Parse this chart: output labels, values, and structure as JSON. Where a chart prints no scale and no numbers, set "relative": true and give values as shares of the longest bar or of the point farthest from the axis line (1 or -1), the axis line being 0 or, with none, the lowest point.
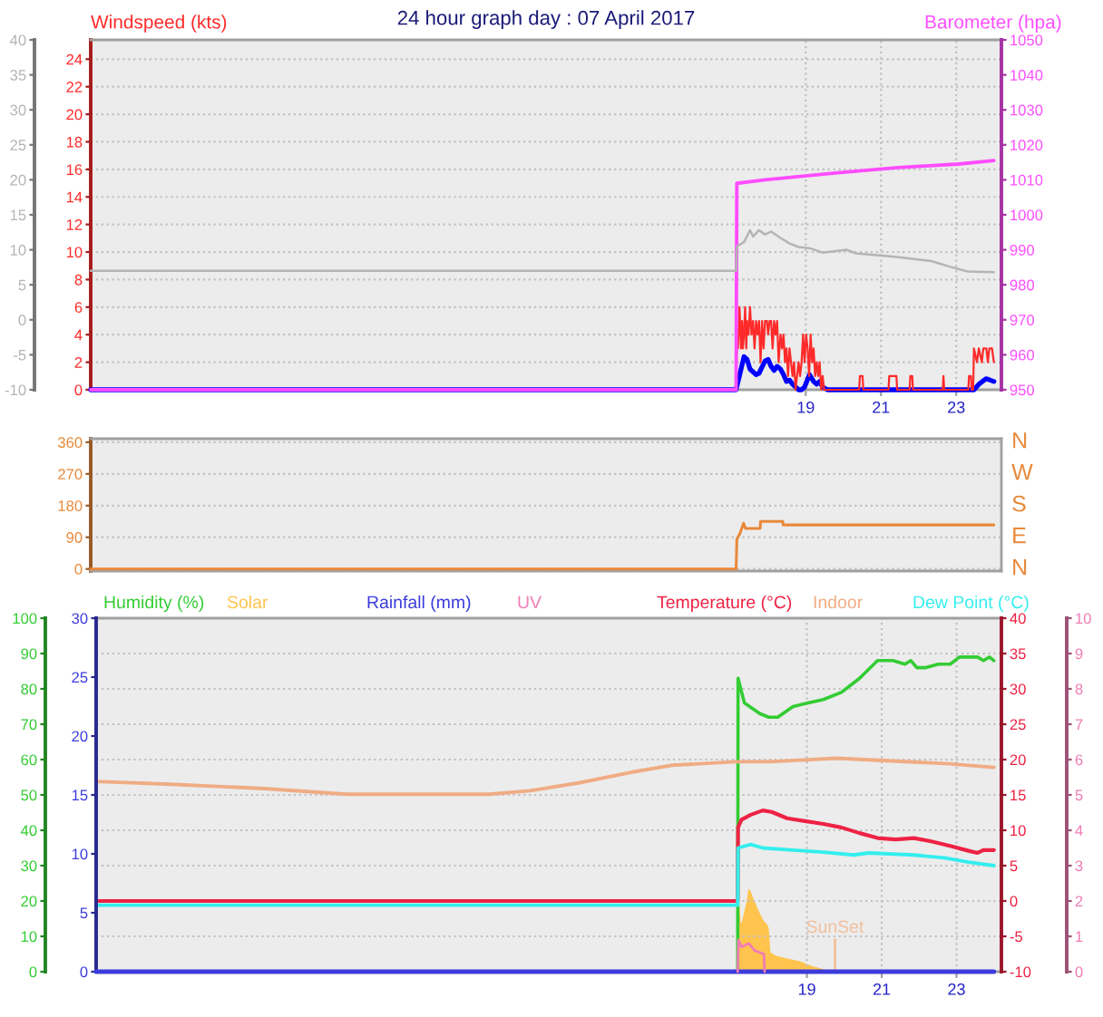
{
  "chart_data": [
    {
      "type": "line",
      "title": "24 hour graph day : 07 April 2017",
      "ylabel": "Windspeed (kts)",
      "y2label": "Barometer (hpa)",
      "xlim": [
        0,
        24.2
      ],
      "xticks": [
        19,
        21,
        23
      ],
      "ylim": [
        0,
        25.4
      ],
      "yticks": [
        0,
        2,
        4,
        6,
        8,
        10,
        12,
        14,
        16,
        18,
        20,
        22,
        24
      ],
      "y2lim": [
        950,
        1050
      ],
      "y2ticks": [
        950,
        960,
        970,
        980,
        990,
        1000,
        1010,
        1020,
        1030,
        1040,
        1050
      ],
      "y3lim": [
        -10,
        40
      ],
      "y3ticks": [
        -10,
        -5,
        0,
        5,
        10,
        15,
        20,
        25,
        30,
        35,
        40
      ],
      "grid": true,
      "series": [
        {
          "color": "#b4b4b4",
          "axis": "y3",
          "x": [
            0,
            17.15,
            17.17,
            17.2,
            17.36,
            17.52,
            17.6,
            17.76,
            17.92,
            18.08,
            18.33,
            18.57,
            18.81,
            19.13,
            19.45,
            20.09,
            20.33,
            20.73,
            21.37,
            22.34,
            22.82,
            23.3,
            24.0
          ],
          "values": [
            7,
            7,
            10.5,
            10.6,
            11.1,
            12.8,
            11.9,
            12.8,
            12.2,
            12.6,
            11.7,
            10.9,
            10.4,
            10.2,
            9.6,
            10.0,
            9.5,
            9.3,
            9.0,
            8.4,
            7.6,
            6.9,
            6.8
          ]
        },
        {
          "color": "#ff4dff",
          "axis": "y2",
          "x": [
            0,
            17.15,
            17.17,
            17.92,
            19.85,
            21.45,
            23.06,
            24.0
          ],
          "values": [
            950,
            950,
            1009,
            1010,
            1012,
            1013.5,
            1014.5,
            1015.5
          ]
        },
        {
          "color": "#ff2a2a",
          "x": [
            0,
            17.15,
            17.17,
            17.2,
            17.24,
            17.28,
            17.31,
            17.33,
            17.36,
            17.39,
            17.42,
            17.44,
            17.48,
            17.52,
            17.56,
            17.6,
            17.64,
            17.68,
            17.72,
            17.76,
            17.8,
            17.84,
            17.88,
            17.92,
            17.97,
            18.0,
            18.04,
            18.08,
            18.12,
            18.16,
            18.2,
            18.24,
            18.28,
            18.33,
            18.37,
            18.41,
            18.45,
            18.49,
            18.53,
            18.57,
            18.61,
            18.65,
            18.69,
            18.73,
            18.77,
            18.81,
            18.85,
            18.89,
            18.93,
            18.97,
            19.01,
            19.05,
            19.09,
            19.13,
            19.17,
            19.21,
            19.25,
            19.29,
            19.33,
            19.37,
            19.41,
            19.45,
            19.49,
            20.42,
            20.44,
            20.51,
            20.53,
            21.2,
            21.22,
            21.41,
            21.43,
            21.76,
            21.78,
            21.83,
            21.85,
            22.64,
            22.66,
            22.68,
            23.32,
            23.34,
            23.39,
            23.41,
            23.45,
            23.47,
            23.55,
            23.6,
            23.68,
            23.72,
            23.8,
            23.84,
            23.88,
            23.95,
            24.0
          ],
          "values": [
            0,
            0,
            4,
            3,
            6,
            3,
            5,
            3,
            4,
            6,
            3,
            5,
            4,
            6,
            4,
            5,
            3,
            5,
            4,
            5,
            2,
            5,
            3,
            5,
            5,
            4,
            5,
            5,
            3,
            5,
            4,
            5,
            2,
            4,
            3,
            4,
            2,
            3,
            1,
            3,
            2,
            1,
            2,
            0,
            1,
            2,
            1,
            2,
            4,
            2,
            4,
            3,
            1,
            4,
            2,
            3,
            1,
            2,
            1,
            2,
            0,
            1,
            0,
            0,
            1,
            1,
            0,
            0,
            1,
            1,
            0,
            0,
            1,
            1,
            0,
            0,
            1,
            0,
            0,
            1,
            1,
            0,
            0,
            3,
            2,
            3,
            2,
            3,
            3,
            2,
            3,
            3,
            2
          ]
        },
        {
          "color": "#0000ff",
          "x": [
            0,
            17.15,
            17.36,
            17.44,
            17.52,
            17.68,
            17.76,
            17.92,
            18.0,
            18.08,
            18.16,
            18.24,
            18.33,
            18.41,
            18.49,
            18.57,
            18.65,
            18.81,
            18.89,
            18.97,
            19.1,
            19.21,
            19.29,
            19.37,
            19.45,
            19.58,
            23.47,
            23.6,
            23.79,
            23.9,
            24.0
          ],
          "values": [
            0,
            0,
            2.4,
            2.2,
            1.5,
            1.1,
            1.2,
            2.1,
            2.2,
            1.7,
            1.4,
            1.7,
            1.5,
            1.1,
            0.6,
            0.7,
            0.4,
            0,
            0,
            0.2,
            1.1,
            0.6,
            0.4,
            0.6,
            0.2,
            0,
            0,
            0.4,
            0.8,
            0.7,
            0.6
          ]
        }
      ]
    },
    {
      "type": "line",
      "xlim": [
        0,
        24.2
      ],
      "ylim": [
        -6,
        370
      ],
      "yticks": [
        0,
        90,
        180,
        270,
        360
      ],
      "annotations": [
        "N",
        "E",
        "S",
        "W",
        "N"
      ],
      "grid": "y",
      "tick_labels": "y",
      "series": [
        {
          "color": "#e8893a",
          "x": [
            0,
            17.15,
            17.17,
            17.25,
            17.3,
            17.35,
            17.4,
            17.79,
            17.8,
            18.39,
            18.4,
            24.0
          ],
          "values": [
            0,
            0,
            85,
            100,
            115,
            130,
            115,
            115,
            135,
            135,
            125,
            125
          ]
        }
      ]
    },
    {
      "type": "line",
      "xlim": [
        0,
        24.2
      ],
      "xticks": [
        19,
        21,
        23
      ],
      "ylim": [
        0,
        100
      ],
      "yticks": [
        0,
        10,
        20,
        30,
        40,
        50,
        60,
        70,
        80,
        90,
        100
      ],
      "y2lim": [
        -10,
        40
      ],
      "y2ticks": [
        -10,
        -5,
        0,
        5,
        10,
        15,
        20,
        25,
        30,
        35,
        40
      ],
      "y3lim": [
        0,
        30
      ],
      "y3ticks": [
        0,
        5,
        10,
        15,
        20,
        25,
        30
      ],
      "grid": true,
      "legend": "top",
      "ref_lines": [
        {
          "axis": "x",
          "value": 19.75,
          "label": "SunSet",
          "color": "#f2bf9c"
        }
      ],
      "series": [
        {
          "name": "Humidity (%)",
          "color": "#33cc33",
          "x": [
            17.15,
            17.16,
            17.33,
            17.74,
            17.98,
            18.22,
            18.63,
            19.03,
            19.44,
            19.92,
            20.41,
            20.89,
            21.3,
            21.62,
            21.78,
            21.94,
            22.18,
            22.51,
            22.83,
            23.08,
            23.32,
            23.56,
            23.72,
            23.88,
            24.0
          ],
          "values": [
            0,
            83,
            76,
            73,
            72,
            72,
            75,
            76,
            77,
            79,
            83,
            88,
            88,
            87,
            88,
            86,
            86,
            87,
            87,
            89,
            89,
            89,
            88,
            89,
            88
          ]
        },
        {
          "name": "Rainfall (mm)",
          "color": "#3c3cdc",
          "axis": "y3",
          "x": [
            0,
            24.0
          ],
          "values": [
            0,
            0
          ]
        },
        {
          "name": "Temperature (°C)",
          "color": "#ee2244",
          "axis": "y2",
          "x": [
            0,
            17.15,
            17.16,
            17.25,
            17.5,
            17.82,
            18.06,
            18.47,
            18.95,
            19.44,
            19.92,
            20.41,
            20.89,
            21.38,
            21.86,
            22.35,
            22.83,
            23.32,
            23.56,
            23.72,
            24.0
          ],
          "values": [
            0,
            0,
            10.4,
            11.5,
            12.2,
            12.8,
            12.6,
            11.7,
            11.3,
            10.9,
            10.4,
            9.6,
            8.9,
            8.7,
            8.9,
            8.4,
            7.8,
            7.1,
            6.8,
            7.2,
            7.2
          ]
        },
        {
          "name": "Indoor",
          "color": "#f0ac84",
          "axis": "y2",
          "x": [
            0,
            2.0,
            4.5,
            6.7,
            10.5,
            11.6,
            12.9,
            14.3,
            15.4,
            17.1,
            18.0,
            19.8,
            20.9,
            22.8,
            24.0
          ],
          "values": [
            16.9,
            16.5,
            15.9,
            15.1,
            15.1,
            15.6,
            16.7,
            18.2,
            19.2,
            19.7,
            19.7,
            20.2,
            19.9,
            19.4,
            18.9
          ]
        },
        {
          "name": "Dew Point (°C)",
          "color": "#33eeee",
          "axis": "y2",
          "x": [
            0,
            17.15,
            17.16,
            17.5,
            17.82,
            18.63,
            19.44,
            20.25,
            20.65,
            21.05,
            21.86,
            22.67,
            23.32,
            24.0
          ],
          "values": [
            -0.6,
            -0.6,
            7.5,
            8.0,
            7.5,
            7.2,
            6.9,
            6.5,
            6.8,
            6.7,
            6.5,
            6.1,
            5.5,
            5.0
          ]
        }
      ]
    },
    {
      "type": "line",
      "xlim": [
        0,
        24.2
      ],
      "ylim": [
        0,
        10
      ],
      "yticks": [
        0,
        1,
        2,
        3,
        4,
        5,
        6,
        7,
        8,
        9,
        10
      ],
      "tick_labels": "y",
      "legend": "top",
      "series": [
        {
          "name": "UV",
          "color": "#f07cb4",
          "x": [
            17.15,
            17.17,
            17.25,
            17.45,
            17.6,
            17.85,
            17.87
          ],
          "values": [
            0,
            0.9,
            0.7,
            0.8,
            0.6,
            0.5,
            0
          ]
        }
      ]
    },
    {
      "type": "area",
      "relative": true,
      "xlim": [
        0,
        24.2
      ],
      "tick_labels": false,
      "legend": "top",
      "series": [
        {
          "name": "Solar",
          "color": "#ffc44d",
          "x": [
            17.15,
            17.17,
            17.2,
            17.25,
            17.33,
            17.41,
            17.46,
            17.52,
            17.59,
            17.66,
            17.74,
            17.82,
            17.9,
            17.95,
            18.0,
            18.14,
            18.46,
            18.79,
            19.11,
            19.44,
            19.6
          ],
          "values": [
            0,
            0.85,
            0.62,
            0.54,
            0.69,
            0.85,
            1,
            0.92,
            0.85,
            0.77,
            0.69,
            0.62,
            0.58,
            0.54,
            0.23,
            0.19,
            0.15,
            0.12,
            0.06,
            0.02,
            0
          ]
        }
      ]
    }
  ]
}
